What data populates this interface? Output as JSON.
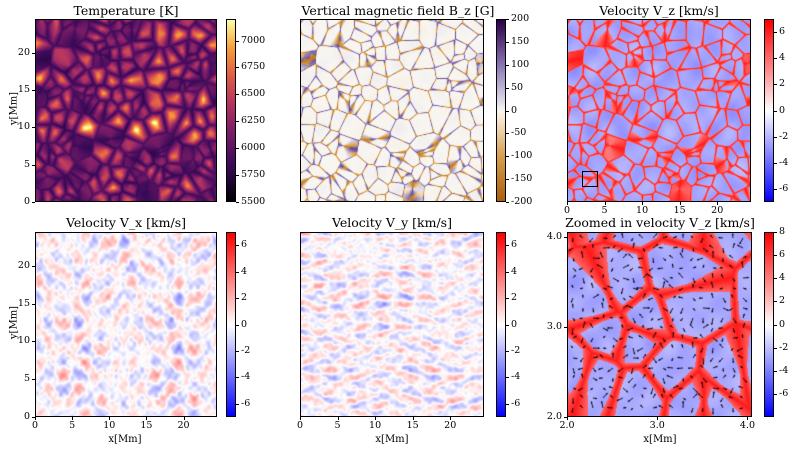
{
  "figure": {
    "panels": [
      {
        "id": "temperature",
        "title": "Temperature [K]",
        "colormap": "inferno-like",
        "ylabel": "y[Mm]",
        "xlabel": ""
      },
      {
        "id": "bz",
        "title": "Vertical magnetic field B_z [G]",
        "colormap": "puor-like",
        "ylabel": "",
        "xlabel": ""
      },
      {
        "id": "vz",
        "title": "Velocity V_z [km/s]",
        "colormap": "bwr",
        "ylabel": "",
        "xlabel": ""
      },
      {
        "id": "vx",
        "title": "Velocity V_x [km/s]",
        "colormap": "bwr",
        "ylabel": "y[Mm]",
        "xlabel": "x[Mm]"
      },
      {
        "id": "vy",
        "title": "Velocity V_y [km/s]",
        "colormap": "bwr",
        "ylabel": "",
        "xlabel": "x[Mm]"
      },
      {
        "id": "vzzoom",
        "title": "Zoomed in velocity V_z [km/s]",
        "colormap": "bwr",
        "ylabel": "",
        "xlabel": "x[Mm]"
      }
    ]
  },
  "chart_data": [
    {
      "type": "heatmap",
      "title": "Temperature [K]",
      "xlabel": "",
      "ylabel": "y[Mm]",
      "xlim": [
        0,
        24.5
      ],
      "ylim": [
        0,
        24.5
      ],
      "xticks": [],
      "yticks": [
        0,
        5,
        10,
        15,
        20
      ],
      "ytick_labels": [
        "0",
        "5",
        "10",
        "15",
        "20"
      ],
      "colorbar": {
        "min": 5500,
        "max": 7200,
        "ticks": [
          5500,
          5750,
          6000,
          6250,
          6500,
          6750,
          7000
        ],
        "labels": [
          "5500",
          "5750",
          "6000",
          "6250",
          "6500",
          "6750",
          "7000"
        ]
      }
    },
    {
      "type": "heatmap",
      "title": "Vertical magnetic field B_z [G]",
      "xlabel": "",
      "ylabel": "",
      "xlim": [
        0,
        24.5
      ],
      "ylim": [
        0,
        24.5
      ],
      "colorbar": {
        "min": -200,
        "max": 200,
        "ticks": [
          -200,
          -150,
          -100,
          -50,
          0,
          50,
          100,
          150,
          200
        ],
        "labels": [
          "-200",
          "-150",
          "-100",
          "-50",
          "0",
          "50",
          "100",
          "150",
          "200"
        ]
      }
    },
    {
      "type": "heatmap",
      "title": "Velocity V_z [km/s]",
      "xlabel": "",
      "ylabel": "",
      "xlim": [
        0,
        24.5
      ],
      "ylim": [
        0,
        24.5
      ],
      "xticks": [
        0,
        5,
        10,
        15,
        20
      ],
      "xtick_labels": [
        "0",
        "5",
        "10",
        "15",
        "20"
      ],
      "highlight_box": {
        "x0": 2.0,
        "x1": 4.0,
        "y0": 2.0,
        "y1": 4.0
      },
      "colorbar": {
        "min": -7,
        "max": 7,
        "ticks": [
          -6,
          -4,
          -2,
          0,
          2,
          4,
          6
        ],
        "labels": [
          "-6",
          "-4",
          "-2",
          "0",
          "2",
          "4",
          "6"
        ]
      }
    },
    {
      "type": "heatmap",
      "title": "Velocity V_x [km/s]",
      "xlabel": "x[Mm]",
      "ylabel": "y[Mm]",
      "xlim": [
        0,
        24.5
      ],
      "ylim": [
        0,
        24.5
      ],
      "xticks": [
        0,
        5,
        10,
        15,
        20
      ],
      "xtick_labels": [
        "0",
        "5",
        "10",
        "15",
        "20"
      ],
      "yticks": [
        0,
        5,
        10,
        15,
        20
      ],
      "ytick_labels": [
        "0",
        "5",
        "10",
        "15",
        "20"
      ],
      "colorbar": {
        "min": -7,
        "max": 7,
        "ticks": [
          -6,
          -4,
          -2,
          0,
          2,
          4,
          6
        ],
        "labels": [
          "-6",
          "-4",
          "-2",
          "0",
          "2",
          "4",
          "6"
        ]
      }
    },
    {
      "type": "heatmap",
      "title": "Velocity V_y [km/s]",
      "xlabel": "x[Mm]",
      "ylabel": "",
      "xlim": [
        0,
        24.5
      ],
      "ylim": [
        0,
        24.5
      ],
      "xticks": [
        0,
        5,
        10,
        15,
        20
      ],
      "xtick_labels": [
        "0",
        "5",
        "10",
        "15",
        "20"
      ],
      "colorbar": {
        "min": -7,
        "max": 7,
        "ticks": [
          -6,
          -4,
          -2,
          0,
          2,
          4,
          6
        ],
        "labels": [
          "-6",
          "-4",
          "-2",
          "0",
          "2",
          "4",
          "6"
        ]
      }
    },
    {
      "type": "heatmap",
      "title": "Zoomed in velocity V_z [km/s]",
      "xlabel": "x[Mm]",
      "ylabel": "",
      "xlim": [
        2.0,
        4.05
      ],
      "ylim": [
        2.0,
        4.05
      ],
      "xticks": [
        2.0,
        3.0,
        4.0
      ],
      "xtick_labels": [
        "2.0",
        "3.0",
        "4.0"
      ],
      "yticks": [
        2.0,
        3.0,
        4.0
      ],
      "ytick_labels": [
        "2.0",
        "3.0",
        "4.0"
      ],
      "quiver": true,
      "colorbar": {
        "min": -8,
        "max": 8,
        "ticks": [
          -6,
          -4,
          -2,
          0,
          2,
          4,
          6,
          8
        ],
        "labels": [
          "-6",
          "-4",
          "-2",
          "0",
          "2",
          "4",
          "6",
          "8"
        ]
      }
    }
  ]
}
